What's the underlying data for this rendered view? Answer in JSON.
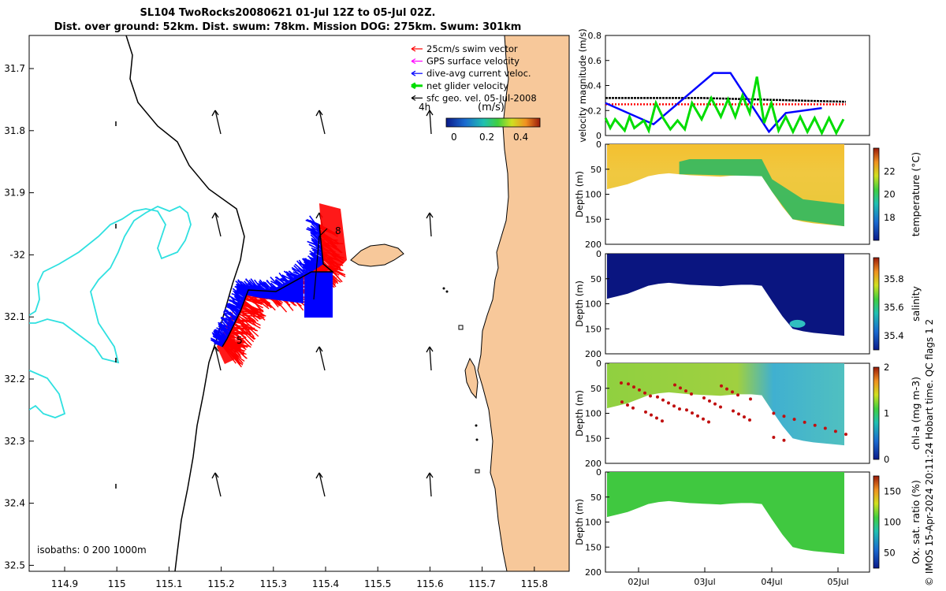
{
  "title": {
    "line1": "SL104 TwoRocks20080621 01-Jul 12Z to 05-Jul 02Z.",
    "line2": "Dist. over ground: 52km. Dist. swum: 78km. Mission DOG: 275km. Swum: 301km"
  },
  "credit": "© IMOS 15-Apr-2024 20:11:24 Hobart time. QC flags 1  2",
  "colors": {
    "land": "#f7c89a",
    "isobath_200": "#000000",
    "isobath_1000": "#2ee0e0",
    "swim": "#ff0000",
    "gps": "#ff00ff",
    "dive_avg": "#0000ff",
    "net": "#00dd00",
    "sfc_geo": "#000000"
  },
  "map": {
    "legend": [
      {
        "label": "25cm/s swim vector",
        "color": "#ff0000"
      },
      {
        "label": "GPS surface velocity",
        "color": "#ff00ff"
      },
      {
        "label": "dive-avg current veloc.",
        "color": "#0000ff"
      },
      {
        "label": "net glider velocity",
        "color": "#00dd00"
      },
      {
        "label": "sfc geo. vel. 05-Jul-2008",
        "color": "#000000"
      }
    ],
    "colorbar_label": "(m/s)",
    "colorbar_ticks": [
      "0",
      "0.2",
      "0.4"
    ],
    "lon_ticks": [
      "114.9",
      "115",
      "115.1",
      "115.2",
      "115.3",
      "115.4",
      "115.5",
      "115.6",
      "115.7",
      "115.8"
    ],
    "lat_ticks": [
      "31.7",
      "31.8",
      "31.9",
      "-32",
      "32.1",
      "32.2",
      "32.3",
      "32.4",
      "32.5"
    ],
    "isobath_note": "isobaths: 0   200  1000m",
    "track_labels": [
      "4h",
      "8",
      "5"
    ]
  },
  "chart_data": [
    {
      "type": "line",
      "title": "",
      "ylabel": "velocity magnitude (m/s)",
      "ylim": [
        0,
        0.8
      ],
      "yticks": [
        "0",
        "0.2",
        "0.4",
        "0.6",
        "0.8"
      ],
      "x_domain": [
        0,
        1
      ],
      "series": [
        {
          "name": "sfc geo. vel.",
          "color": "#000000",
          "x": [
            0,
            0.2,
            0.4,
            0.6,
            0.8,
            1.0
          ],
          "values": [
            0.3,
            0.3,
            0.3,
            0.29,
            0.28,
            0.27
          ]
        },
        {
          "name": "swim",
          "color": "#ff0000",
          "x": [
            0,
            0.2,
            0.4,
            0.6,
            0.8,
            1.0
          ],
          "values": [
            0.25,
            0.25,
            0.25,
            0.25,
            0.25,
            0.25
          ]
        },
        {
          "name": "dive-avg current",
          "color": "#0000ff",
          "x": [
            0.0,
            0.2,
            0.45,
            0.52,
            0.68,
            0.75,
            0.9
          ],
          "values": [
            0.26,
            0.09,
            0.5,
            0.5,
            0.03,
            0.18,
            0.22
          ]
        },
        {
          "name": "net glider velocity",
          "color": "#00dd00",
          "x": [
            0.0,
            0.02,
            0.04,
            0.08,
            0.1,
            0.12,
            0.16,
            0.18,
            0.21,
            0.24,
            0.27,
            0.3,
            0.33,
            0.36,
            0.4,
            0.44,
            0.48,
            0.51,
            0.54,
            0.57,
            0.6,
            0.63,
            0.66,
            0.69,
            0.72,
            0.75,
            0.78,
            0.81,
            0.84,
            0.87,
            0.9,
            0.93,
            0.96,
            0.99
          ],
          "values": [
            0.14,
            0.06,
            0.13,
            0.04,
            0.15,
            0.06,
            0.12,
            0.04,
            0.26,
            0.14,
            0.05,
            0.12,
            0.05,
            0.26,
            0.13,
            0.3,
            0.15,
            0.29,
            0.15,
            0.32,
            0.18,
            0.47,
            0.1,
            0.26,
            0.04,
            0.15,
            0.03,
            0.15,
            0.03,
            0.14,
            0.02,
            0.14,
            0.02,
            0.13
          ]
        }
      ]
    },
    {
      "type": "heatmap",
      "variable": "temperature",
      "ylabel": "Depth (m)",
      "ylim": [
        0,
        200
      ],
      "yticks": [
        "0",
        "50",
        "100",
        "150",
        "200"
      ],
      "colorbar_label": "temperature (°C)",
      "colorbar_range": [
        16,
        24
      ],
      "colorbar_ticks": [
        "18",
        "20",
        "22"
      ],
      "bottom_depth_profile": [
        90,
        85,
        80,
        72,
        64,
        60,
        58,
        60,
        62,
        63,
        64,
        65,
        63,
        62,
        62,
        64,
        95,
        125,
        150,
        155,
        158,
        160,
        162,
        164
      ],
      "description_values": {
        "upper_layer": 22.5,
        "lower_shelf_water": 20.0,
        "deep_offshore": 18.5
      }
    },
    {
      "type": "heatmap",
      "variable": "salinity",
      "ylabel": "Depth (m)",
      "ylim": [
        0,
        200
      ],
      "yticks": [
        "0",
        "50",
        "100",
        "150",
        "200"
      ],
      "colorbar_label": "salinity",
      "colorbar_range": [
        35.3,
        35.95
      ],
      "colorbar_ticks": [
        "35.4",
        "35.6",
        "35.8"
      ],
      "bottom_depth_profile": [
        90,
        85,
        80,
        72,
        64,
        60,
        58,
        60,
        62,
        63,
        64,
        65,
        63,
        62,
        62,
        64,
        95,
        125,
        150,
        155,
        158,
        160,
        162,
        164
      ],
      "description_values": {
        "bulk": 35.3,
        "deep_patch": 35.5
      }
    },
    {
      "type": "heatmap",
      "variable": "chl-a",
      "ylabel": "Depth (m)",
      "ylim": [
        0,
        200
      ],
      "yticks": [
        "0",
        "50",
        "100",
        "150",
        "200"
      ],
      "colorbar_label": "chl-a (mg m-3)",
      "colorbar_range": [
        0,
        2
      ],
      "colorbar_ticks": [
        "0",
        "1",
        "2"
      ],
      "bottom_depth_profile": [
        90,
        85,
        80,
        72,
        64,
        60,
        58,
        60,
        62,
        63,
        64,
        65,
        63,
        62,
        62,
        64,
        95,
        125,
        150,
        155,
        158,
        160,
        162,
        164
      ],
      "description_values": {
        "shelf": 1.0,
        "offshore": 0.5,
        "bottom_maxima": 2.0
      }
    },
    {
      "type": "heatmap",
      "variable": "oxygen saturation",
      "ylabel": "Depth (m)",
      "ylim": [
        0,
        200
      ],
      "yticks": [
        "0",
        "50",
        "100",
        "150",
        "200"
      ],
      "colorbar_label": "Ox. sat. ratio (%)",
      "colorbar_range": [
        25,
        175
      ],
      "colorbar_ticks": [
        "50",
        "100",
        "150"
      ],
      "bottom_depth_profile": [
        90,
        85,
        80,
        72,
        64,
        60,
        58,
        60,
        62,
        63,
        64,
        65,
        63,
        62,
        62,
        64,
        95,
        125,
        150,
        155,
        158,
        160,
        162,
        164
      ],
      "description_values": {
        "bulk": 100
      }
    }
  ],
  "time_axis": {
    "ticks": [
      "02Jul",
      "03Jul",
      "04Jul",
      "05Jul"
    ]
  }
}
